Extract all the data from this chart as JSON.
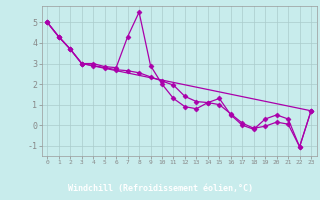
{
  "xlabel": "Windchill (Refroidissement éolien,°C)",
  "background_color": "#c8ecec",
  "plot_bg_color": "#c8ecec",
  "bottom_bar_color": "#7700aa",
  "grid_color": "#aacccc",
  "line_color": "#aa00aa",
  "marker_color": "#aa00aa",
  "xlabel_color": "#ffffff",
  "tick_label_color": "#aa00aa",
  "x_ticks": [
    0,
    1,
    2,
    3,
    4,
    5,
    6,
    7,
    8,
    9,
    10,
    11,
    12,
    13,
    14,
    15,
    16,
    17,
    18,
    19,
    20,
    21,
    22,
    23
  ],
  "ylim": [
    -1.5,
    5.8
  ],
  "xlim": [
    -0.5,
    23.5
  ],
  "line1_x": [
    0,
    1,
    2,
    3,
    4,
    5,
    6,
    7,
    8,
    9,
    10,
    11,
    12,
    13,
    14,
    15,
    16,
    17,
    18,
    19,
    20,
    21,
    22,
    23
  ],
  "line1_y": [
    5.0,
    4.3,
    3.7,
    3.0,
    3.0,
    2.85,
    2.8,
    4.3,
    5.5,
    2.9,
    2.0,
    1.3,
    0.9,
    0.8,
    1.1,
    1.3,
    0.5,
    0.0,
    -0.2,
    0.3,
    0.5,
    0.3,
    -1.05,
    0.7
  ],
  "line2_x": [
    0,
    1,
    2,
    3,
    4,
    5,
    6,
    7,
    8,
    9,
    10,
    11,
    12,
    13,
    14,
    15,
    16,
    17,
    18,
    19,
    20,
    21,
    22,
    23
  ],
  "line2_y": [
    5.0,
    4.3,
    3.7,
    3.0,
    2.9,
    2.8,
    2.7,
    2.65,
    2.55,
    2.35,
    2.15,
    1.95,
    1.4,
    1.15,
    1.1,
    1.0,
    0.55,
    0.1,
    -0.15,
    -0.05,
    0.15,
    0.05,
    -1.05,
    0.7
  ],
  "line3_x": [
    0,
    1,
    2,
    3,
    23
  ],
  "line3_y": [
    5.0,
    4.3,
    3.7,
    3.0,
    0.7
  ],
  "yticks": [
    -1,
    0,
    1,
    2,
    3,
    4,
    5
  ]
}
